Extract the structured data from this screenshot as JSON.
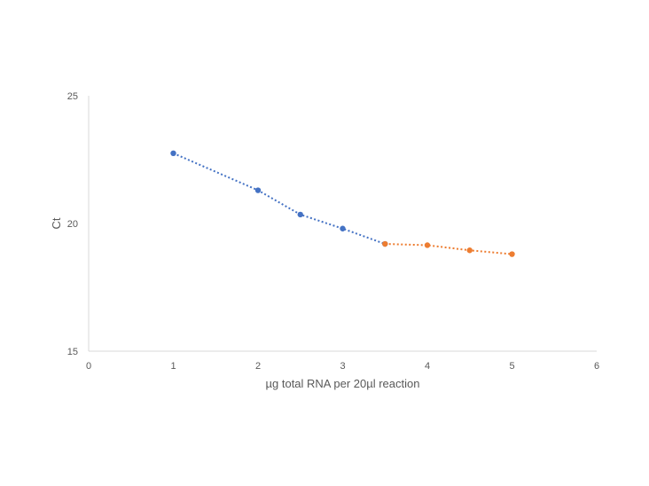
{
  "chart_data": {
    "type": "scatter",
    "title": "",
    "xlabel": "µg total RNA per 20µl reaction",
    "ylabel": "Ct",
    "xlim": [
      0,
      6
    ],
    "ylim": [
      15,
      25
    ],
    "x_ticks": [
      "0",
      "1",
      "2",
      "3",
      "4",
      "5",
      "6"
    ],
    "y_ticks": [
      "15",
      "20",
      "25"
    ],
    "grid": false,
    "legend": "none",
    "series": [
      {
        "color": "#4472C4",
        "line_style": "dotted",
        "points": [
          {
            "x": 1,
            "y": 22.75
          },
          {
            "x": 2,
            "y": 21.3
          },
          {
            "x": 2.5,
            "y": 20.35
          },
          {
            "x": 3,
            "y": 19.8
          },
          {
            "x": 3.5,
            "y": 19.2
          }
        ]
      },
      {
        "color": "#ED7D31",
        "line_style": "dotted",
        "points": [
          {
            "x": 3.5,
            "y": 19.2
          },
          {
            "x": 4,
            "y": 19.15
          },
          {
            "x": 4.5,
            "y": 18.95
          },
          {
            "x": 5,
            "y": 18.8
          }
        ]
      }
    ]
  }
}
